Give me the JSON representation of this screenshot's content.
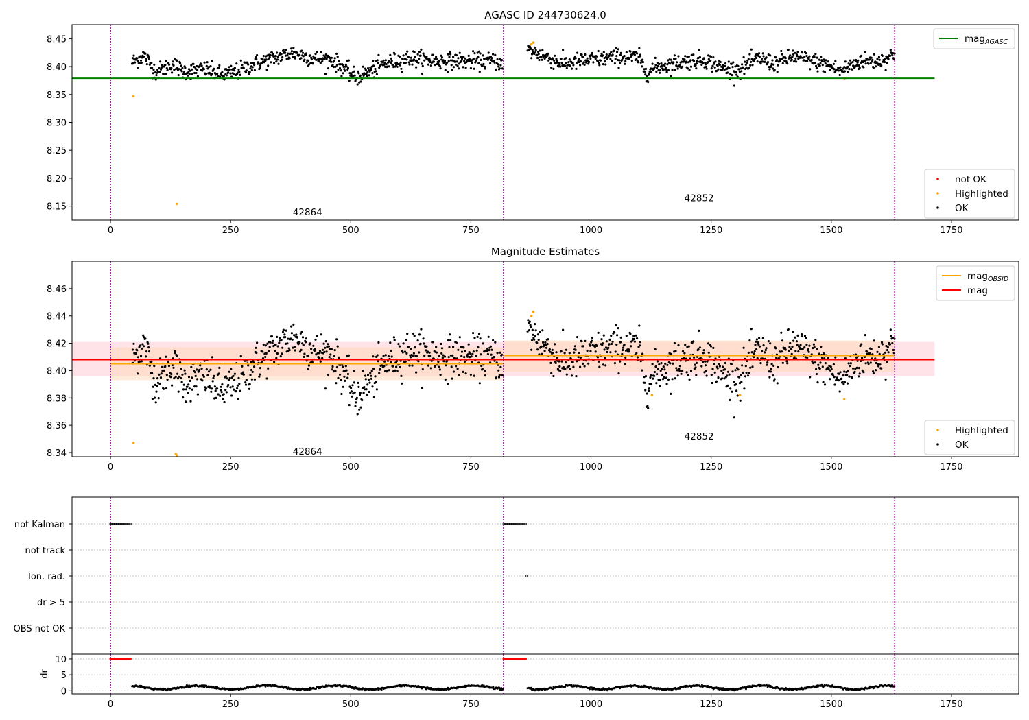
{
  "colors": {
    "ok": "#000000",
    "highlighted": "#ffa500",
    "not_ok": "#ff0000",
    "mag_agasc": "#008000",
    "mag_obsid": "#ffa500",
    "mag": "#ff0000",
    "obs_boundary": "#800080",
    "mag_band": "#ffc0cb",
    "obsid_band": "#ffdab9"
  },
  "chart_data": [
    {
      "type": "scatter",
      "title": "AGASC ID 244730624.0",
      "xlim": [
        -80,
        1890
      ],
      "ylim": [
        8.125,
        8.475
      ],
      "xticks": [
        0,
        250,
        500,
        750,
        1000,
        1250,
        1500,
        1750
      ],
      "yticks": [
        8.15,
        8.2,
        8.25,
        8.3,
        8.35,
        8.4,
        8.45
      ],
      "obs_boundaries": [
        0,
        818,
        1632
      ],
      "obs_labels": [
        {
          "text": "42864",
          "x": 410,
          "y": 8.14
        },
        {
          "text": "42852",
          "x": 1225,
          "y": 8.165
        }
      ],
      "hlines": [
        {
          "name": "mag_agasc",
          "y": 8.379,
          "x": [
            -80,
            1715
          ],
          "color": "#008000"
        }
      ],
      "legend_lines": [
        {
          "label": "mag",
          "sub": "AGASC",
          "color": "#008000"
        }
      ],
      "legend_points": [
        {
          "label": "not OK",
          "color": "#ff0000"
        },
        {
          "label": "Highlighted",
          "color": "#ffa500"
        },
        {
          "label": "OK",
          "color": "#000000"
        }
      ],
      "highlighted_points": [
        [
          48,
          8.347
        ],
        [
          138,
          8.154
        ],
        [
          880,
          8.443
        ],
        [
          876,
          8.44
        ],
        [
          1528,
          8.379
        ]
      ]
    },
    {
      "type": "scatter",
      "title": "Magnitude Estimates",
      "xlim": [
        -80,
        1890
      ],
      "ylim": [
        8.337,
        8.48
      ],
      "xticks": [
        0,
        250,
        500,
        750,
        1000,
        1250,
        1500,
        1750
      ],
      "yticks": [
        8.34,
        8.36,
        8.38,
        8.4,
        8.42,
        8.44,
        8.46
      ],
      "obs_boundaries": [
        0,
        818,
        1632
      ],
      "obs_labels": [
        {
          "text": "42864",
          "x": 410,
          "y": 8.341
        },
        {
          "text": "42852",
          "x": 1225,
          "y": 8.352
        }
      ],
      "mag_band": {
        "x": [
          -80,
          1715
        ],
        "y": [
          8.396,
          8.421
        ],
        "mean": 8.408
      },
      "obsid_segments": [
        {
          "x": [
            0,
            818
          ],
          "mean": 8.405,
          "y": [
            8.393,
            8.417
          ]
        },
        {
          "x": [
            818,
            1632
          ],
          "mean": 8.411,
          "y": [
            8.399,
            8.422
          ]
        }
      ],
      "legend_lines": [
        {
          "label": "mag",
          "sub": "OBSID",
          "color": "#ffa500"
        },
        {
          "label": "mag",
          "sub": "",
          "color": "#ff0000"
        }
      ],
      "legend_points": [
        {
          "label": "Highlighted",
          "color": "#ffa500"
        },
        {
          "label": "OK",
          "color": "#000000"
        }
      ],
      "highlighted_points": [
        [
          48,
          8.347
        ],
        [
          136,
          8.339
        ],
        [
          138,
          8.338
        ],
        [
          880,
          8.443
        ],
        [
          876,
          8.44
        ],
        [
          1127,
          8.382
        ],
        [
          1310,
          8.382
        ],
        [
          1527,
          8.379
        ]
      ]
    },
    {
      "type": "scatter",
      "title": "",
      "xlim": [
        -80,
        1890
      ],
      "categories": [
        "not Kalman",
        "not track",
        "Ion. rad.",
        "dr > 5",
        "OBS not OK"
      ],
      "flag_segments": [
        {
          "category": "not Kalman",
          "x": [
            0,
            42
          ]
        },
        {
          "category": "not Kalman",
          "x": [
            818,
            866
          ]
        },
        {
          "category": "Ion. rad.",
          "x": [
            866,
            866
          ]
        }
      ],
      "dr": {
        "ylim": [
          -1,
          11.5
        ],
        "yticks": [
          0,
          5,
          10
        ],
        "ylabel": "dr",
        "xticks": [
          0,
          250,
          500,
          750,
          1000,
          1250,
          1500,
          1750
        ],
        "capped_segments": [
          [
            0,
            42
          ],
          [
            818,
            866
          ]
        ],
        "cap": 10
      }
    }
  ]
}
